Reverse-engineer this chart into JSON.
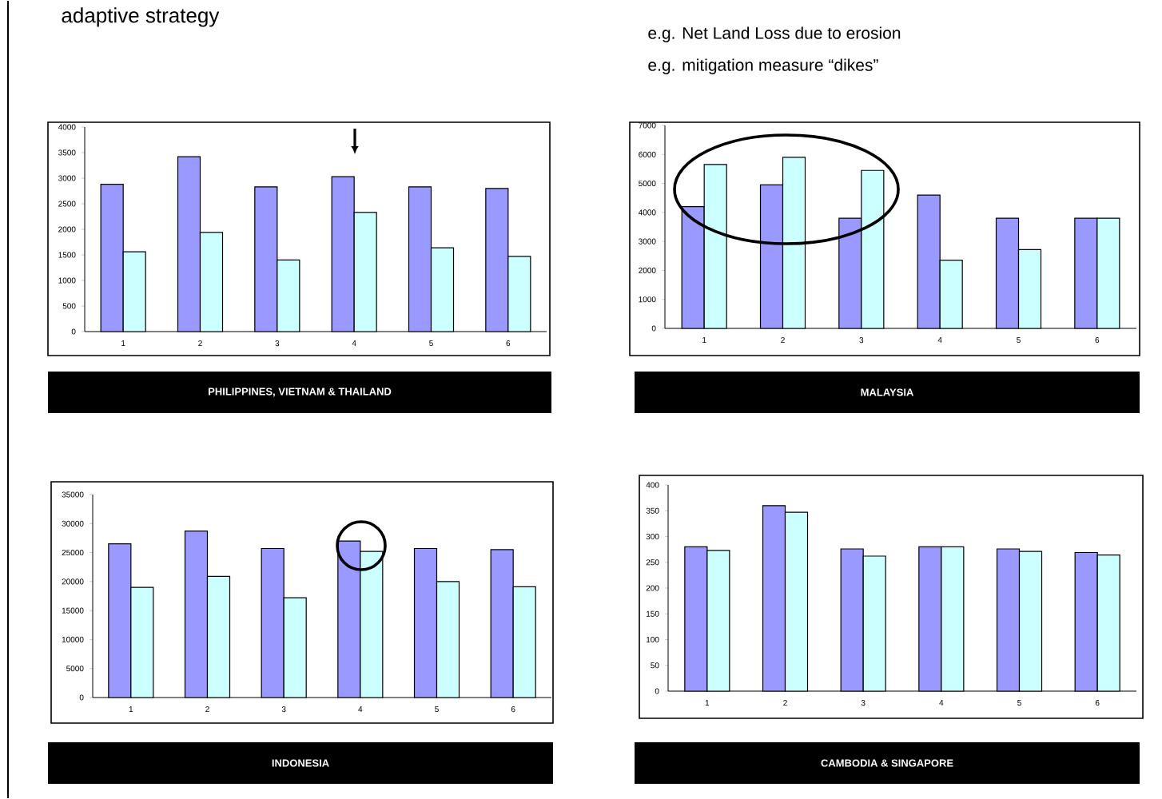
{
  "chart_data": [
    {
      "type": "bar",
      "title": "PHILIPPINES,  VIETNAM & THAILAND",
      "annotations": [
        "adaptive strategy"
      ],
      "categories": [
        "1",
        "2",
        "3",
        "4",
        "5",
        "6"
      ],
      "series": [
        {
          "color": "#9999ff",
          "values": [
            2880,
            3420,
            2830,
            3030,
            2830,
            2800
          ]
        },
        {
          "color": "#ccffff",
          "values": [
            1560,
            1940,
            1400,
            2330,
            1640,
            1470
          ]
        }
      ],
      "ylim": [
        0,
        4000
      ],
      "yticks": [
        0,
        500,
        1000,
        1500,
        2000,
        2500,
        3000,
        3500,
        4000
      ],
      "grid": false
    },
    {
      "type": "bar",
      "title": "MALAYSIA",
      "annotations": [
        "e.g. Net Land Loss due to erosion",
        "e.g. mitigation measure “dikes”"
      ],
      "categories": [
        "1",
        "2",
        "3",
        "4",
        "5",
        "6"
      ],
      "series": [
        {
          "color": "#9999ff",
          "values": [
            4200,
            4950,
            3800,
            4600,
            3800,
            3800
          ]
        },
        {
          "color": "#ccffff",
          "values": [
            5650,
            5900,
            5450,
            2350,
            2720,
            3800
          ]
        }
      ],
      "ylim": [
        0,
        7000
      ],
      "yticks": [
        0,
        1000,
        2000,
        3000,
        4000,
        5000,
        6000,
        7000
      ],
      "grid": false
    },
    {
      "type": "bar",
      "title": "INDONESIA",
      "categories": [
        "1",
        "2",
        "3",
        "4",
        "5",
        "6"
      ],
      "series": [
        {
          "color": "#9999ff",
          "values": [
            26500,
            28700,
            25700,
            27000,
            25700,
            25500
          ]
        },
        {
          "color": "#ccffff",
          "values": [
            19000,
            20900,
            17200,
            25200,
            20000,
            19100
          ]
        }
      ],
      "ylim": [
        0,
        35000
      ],
      "yticks": [
        0,
        5000,
        10000,
        15000,
        20000,
        25000,
        30000,
        35000
      ],
      "grid": false
    },
    {
      "type": "bar",
      "title": "CAMBODIA & SINGAPORE",
      "categories": [
        "1",
        "2",
        "3",
        "4",
        "5",
        "6"
      ],
      "series": [
        {
          "color": "#9999ff",
          "values": [
            280,
            360,
            276,
            280,
            276,
            269
          ]
        },
        {
          "color": "#ccffff",
          "values": [
            273,
            347,
            262,
            280,
            271,
            264
          ]
        }
      ],
      "ylim": [
        0,
        400
      ],
      "yticks": [
        0,
        50,
        100,
        150,
        200,
        250,
        300,
        350,
        400
      ],
      "grid": false
    }
  ]
}
